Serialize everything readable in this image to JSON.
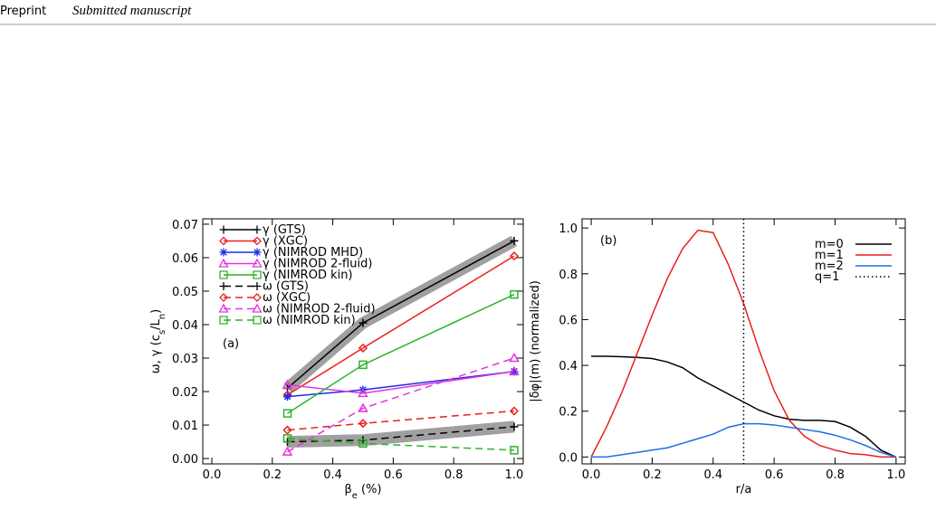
{
  "header": {
    "label": "Preprint",
    "note": "Submitted manuscript"
  },
  "chart_data": [
    {
      "type": "line",
      "annotation": "(a)",
      "xlabel": [
        "β",
        "e",
        " (%)"
      ],
      "ylabel": [
        "ω, γ (c",
        "s",
        "/L",
        "n",
        ")"
      ],
      "x": [
        0.25,
        0.5,
        1.0
      ],
      "xlim": [
        -0.03,
        1.03
      ],
      "ylim": [
        -0.0016,
        0.0716
      ],
      "xticks": [
        {
          "value": 0,
          "label": "0.0"
        },
        0.2,
        0.4,
        0.6,
        0.8,
        {
          "value": 1,
          "label": "1.0"
        }
      ],
      "yticks": [
        {
          "value": 0,
          "label": "0.00"
        },
        {
          "value": 0.01,
          "label": "0.01"
        },
        {
          "value": 0.02,
          "label": "0.02"
        },
        {
          "value": 0.03,
          "label": "0.03"
        },
        {
          "value": 0.04,
          "label": "0.04"
        },
        {
          "value": 0.05,
          "label": "0.05"
        },
        {
          "value": 0.06,
          "label": "0.06"
        },
        {
          "value": 0.07,
          "label": "0.07"
        }
      ],
      "legend": "upper left",
      "series": [
        {
          "name": "γ (GTS)",
          "color": "#000000",
          "marker": "plus",
          "dash": "solid",
          "band_color": "#a0a0a0",
          "values": [
            0.021,
            0.0405,
            0.065
          ]
        },
        {
          "name": "γ (XGC)",
          "color": "#e8201e",
          "marker": "diamond",
          "dash": "solid",
          "values": [
            0.019,
            0.033,
            0.0605
          ]
        },
        {
          "name": "γ (NIMROD MHD)",
          "color": "#1a2ee6",
          "marker": "asterisk",
          "dash": "solid",
          "values": [
            0.0185,
            0.0205,
            0.026
          ]
        },
        {
          "name": "γ (NIMROD 2-fluid)",
          "color": "#e632e0",
          "marker": "triangle",
          "dash": "solid",
          "values": [
            0.022,
            0.0195,
            0.026
          ]
        },
        {
          "name": "γ (NIMROD kin)",
          "color": "#2cb42a",
          "marker": "square",
          "dash": "solid",
          "values": [
            0.0135,
            0.028,
            0.049
          ]
        },
        {
          "name": "ω (GTS)",
          "color": "#000000",
          "marker": "plus",
          "dash": "dashed",
          "band_color": "#a0a0a0",
          "values": [
            0.005,
            0.0055,
            0.0095
          ]
        },
        {
          "name": "ω (XGC)",
          "color": "#e8201e",
          "marker": "diamond",
          "dash": "dashed",
          "values": [
            0.0085,
            0.0105,
            0.0142
          ]
        },
        {
          "name": "ω (NIMROD 2-fluid)",
          "color": "#e632e0",
          "marker": "triangle",
          "dash": "dashed",
          "values": [
            0.002,
            0.015,
            0.03
          ]
        },
        {
          "name": "ω (NIMROD kin)",
          "color": "#2cb42a",
          "marker": "square",
          "dash": "dashed",
          "values": [
            0.006,
            0.0045,
            0.0025
          ]
        }
      ]
    },
    {
      "type": "line",
      "annotation": "(b)",
      "xlabel": [
        "r/a"
      ],
      "ylabel": [
        "|δφ|(m) (normalized)"
      ],
      "x": [
        0,
        0.05,
        0.1,
        0.15,
        0.2,
        0.25,
        0.3,
        0.35,
        0.4,
        0.45,
        0.5,
        0.55,
        0.6,
        0.65,
        0.7,
        0.75,
        0.8,
        0.85,
        0.9,
        0.95,
        1.0
      ],
      "xlim": [
        -0.03,
        1.03
      ],
      "ylim": [
        -0.03,
        1.04
      ],
      "xticks": [
        {
          "value": 0,
          "label": "0.0"
        },
        0.2,
        0.4,
        0.6,
        0.8,
        {
          "value": 1,
          "label": "1.0"
        }
      ],
      "yticks": [
        {
          "value": 0,
          "label": "0.0"
        },
        0.2,
        0.4,
        0.6,
        0.8,
        {
          "value": 1,
          "label": "1.0"
        }
      ],
      "legend": "upper right",
      "series": [
        {
          "name": "m=0",
          "color": "#000000",
          "dash": "solid",
          "values": [
            0.44,
            0.44,
            0.438,
            0.435,
            0.43,
            0.415,
            0.39,
            0.345,
            0.31,
            0.275,
            0.24,
            0.205,
            0.18,
            0.165,
            0.16,
            0.16,
            0.155,
            0.13,
            0.09,
            0.03,
            0.0
          ]
        },
        {
          "name": "m=1",
          "color": "#e8201e",
          "dash": "solid",
          "values": [
            0.0,
            0.13,
            0.28,
            0.45,
            0.62,
            0.78,
            0.91,
            0.99,
            0.98,
            0.84,
            0.67,
            0.47,
            0.29,
            0.16,
            0.09,
            0.05,
            0.03,
            0.015,
            0.01,
            0.0,
            0.0
          ]
        },
        {
          "name": "m=2",
          "color": "#1e6ee6",
          "dash": "solid",
          "values": [
            0.0,
            0.0,
            0.01,
            0.02,
            0.03,
            0.04,
            0.06,
            0.08,
            0.1,
            0.13,
            0.145,
            0.145,
            0.14,
            0.13,
            0.12,
            0.11,
            0.095,
            0.075,
            0.05,
            0.02,
            0.0
          ]
        },
        {
          "name": "q=1",
          "color": "#000000",
          "dash": "dotted",
          "xline": 0.5
        }
      ]
    }
  ]
}
